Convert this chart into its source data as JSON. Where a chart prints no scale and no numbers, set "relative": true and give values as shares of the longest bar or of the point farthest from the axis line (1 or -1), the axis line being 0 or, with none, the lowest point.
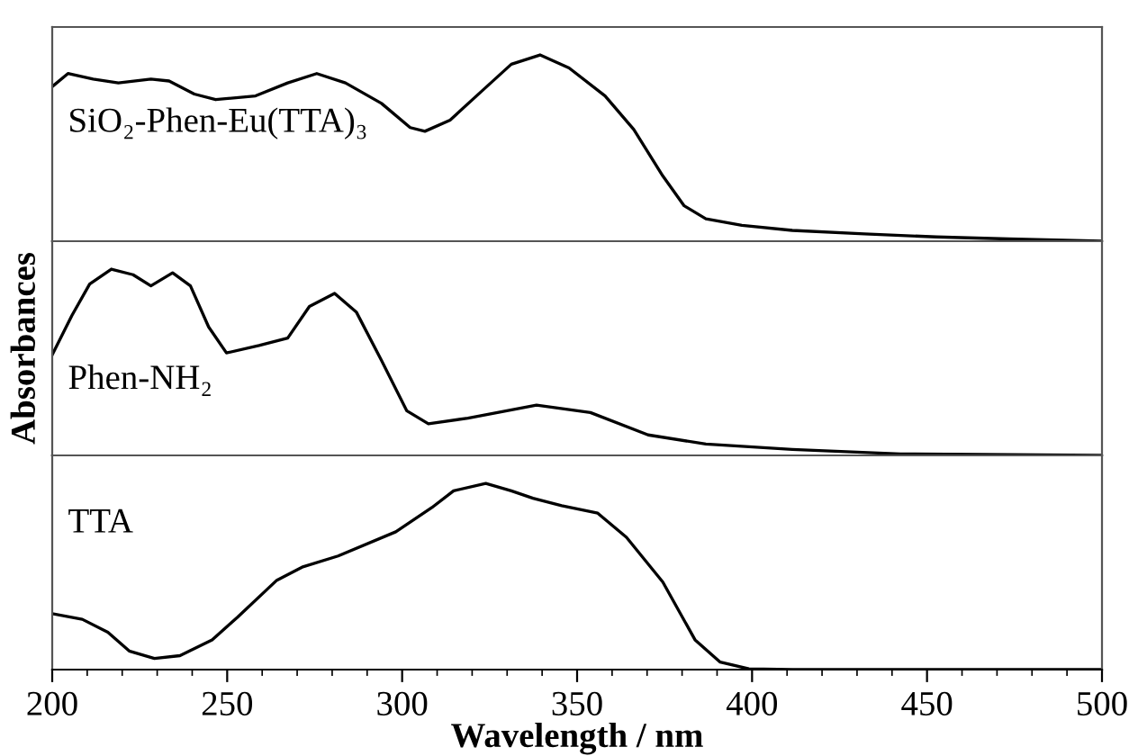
{
  "chart_data": [
    {
      "type": "line",
      "relative": true,
      "xlim": [
        200,
        500
      ],
      "xticks": [
        200,
        250,
        300,
        350,
        400,
        450,
        500
      ],
      "tick_labels": false,
      "annotations": [
        "SiO₂-Phen-Eu(TTA)₃"
      ],
      "series": [
        {
          "color": "#000000",
          "x": [
            200,
            204.5,
            211.7,
            218.9,
            228.2,
            233.4,
            240.6,
            246.7,
            258.1,
            267.3,
            275.6,
            283.8,
            294.1,
            302.3,
            306.5,
            313.7,
            323.0,
            331.2,
            339.4,
            347.7,
            358.0,
            366.2,
            374.5,
            380.6,
            386.8,
            397.1,
            411.5,
            432.1,
            452.7,
            473.3,
            500
          ],
          "values": [
            0.83,
            0.9,
            0.87,
            0.85,
            0.87,
            0.86,
            0.79,
            0.76,
            0.78,
            0.85,
            0.9,
            0.85,
            0.74,
            0.61,
            0.59,
            0.65,
            0.81,
            0.95,
            1.0,
            0.93,
            0.78,
            0.6,
            0.35,
            0.19,
            0.12,
            0.085,
            0.058,
            0.039,
            0.023,
            0.012,
            0
          ]
        }
      ]
    },
    {
      "type": "line",
      "relative": true,
      "xlim": [
        200,
        500
      ],
      "xticks": [
        200,
        250,
        300,
        350,
        400,
        450,
        500
      ],
      "tick_labels": false,
      "ylabel": "Absorbances",
      "annotations": [
        "Phen-NH₂"
      ],
      "series": [
        {
          "color": "#000000",
          "x": [
            200,
            205.6,
            210.7,
            216.9,
            223.1,
            228.2,
            234.4,
            239.5,
            244.7,
            249.8,
            259.1,
            267.3,
            273.5,
            280.7,
            286.9,
            294.1,
            301.3,
            307.5,
            318.8,
            338.4,
            353.8,
            370.3,
            386.8,
            411.5,
            442.4,
            500
          ],
          "values": [
            0.54,
            0.75,
            0.92,
            1.0,
            0.97,
            0.91,
            0.98,
            0.91,
            0.69,
            0.55,
            0.59,
            0.63,
            0.8,
            0.87,
            0.77,
            0.51,
            0.24,
            0.17,
            0.2,
            0.27,
            0.23,
            0.11,
            0.061,
            0.032,
            0.008,
            0
          ]
        }
      ]
    },
    {
      "type": "line",
      "relative": true,
      "xlim": [
        200,
        500
      ],
      "xticks": [
        200,
        250,
        300,
        350,
        400,
        450,
        500
      ],
      "tick_labels": "x",
      "xlabel": "Wavelength / nm",
      "annotations": [
        "TTA"
      ],
      "series": [
        {
          "color": "#000000",
          "x": [
            200,
            208.6,
            215.9,
            222.0,
            229.2,
            236.5,
            245.7,
            252.9,
            264.2,
            271.4,
            281.7,
            298.2,
            308.5,
            314.7,
            323.9,
            331.2,
            337.4,
            345.6,
            355.9,
            364.1,
            374.5,
            383.7,
            390.9,
            399.1,
            411.5,
            500
          ],
          "values": [
            0.3,
            0.27,
            0.2,
            0.1,
            0.06,
            0.075,
            0.16,
            0.28,
            0.48,
            0.55,
            0.61,
            0.74,
            0.87,
            0.96,
            1.0,
            0.96,
            0.92,
            0.88,
            0.84,
            0.71,
            0.47,
            0.16,
            0.04,
            0.004,
            0,
            0
          ]
        }
      ]
    }
  ]
}
